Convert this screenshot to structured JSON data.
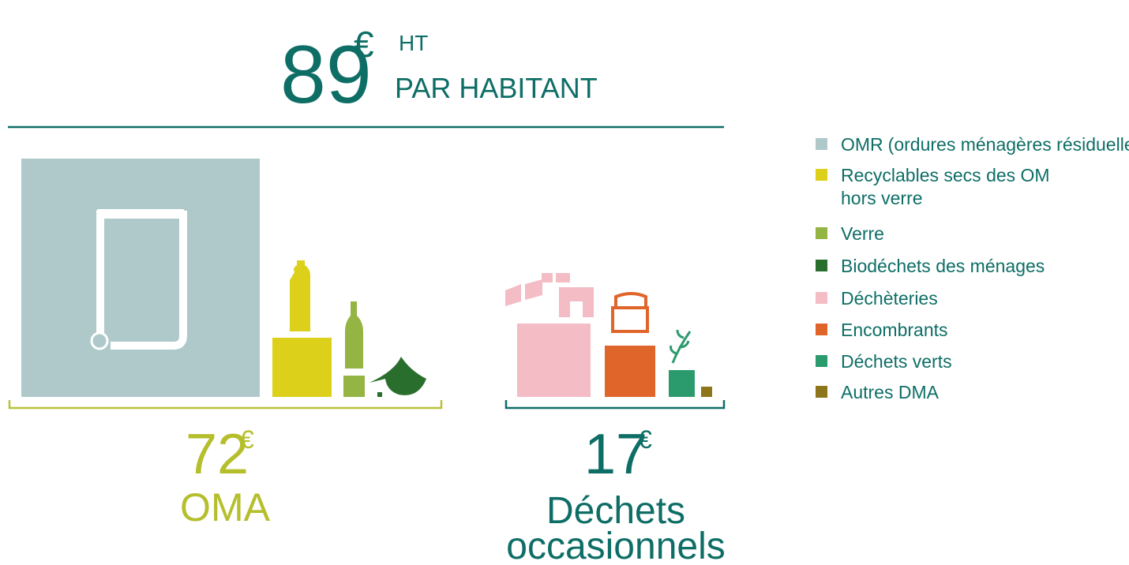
{
  "header": {
    "amount": "89",
    "currency": "€",
    "tax": "HT",
    "label": "PAR HABITANT"
  },
  "groups": [
    {
      "amount": "72",
      "currency": "€",
      "label": [
        "OMA"
      ]
    },
    {
      "amount": "17",
      "currency": "€",
      "label": [
        "Déchets",
        "occasionnels"
      ]
    }
  ],
  "legend": [
    {
      "name": "OMR",
      "note": "(ordures ménagères résiduelles)",
      "color": "#afc9cb"
    },
    {
      "name": [
        "Recyclables secs des OM",
        "hors verre"
      ],
      "color": "#dcd01a"
    },
    {
      "name": "Verre",
      "color": "#94b443"
    },
    {
      "name": "Biodéchets des ménages",
      "color": "#2a6e2e"
    },
    {
      "name": "Déchèteries",
      "color": "#f4bcc5"
    },
    {
      "name": "Encombrants",
      "color": "#e0652a"
    },
    {
      "name": "Déchets verts",
      "color": "#2b9a6c"
    },
    {
      "name": "Autres DMA",
      "color": "#8d7519"
    }
  ]
}
